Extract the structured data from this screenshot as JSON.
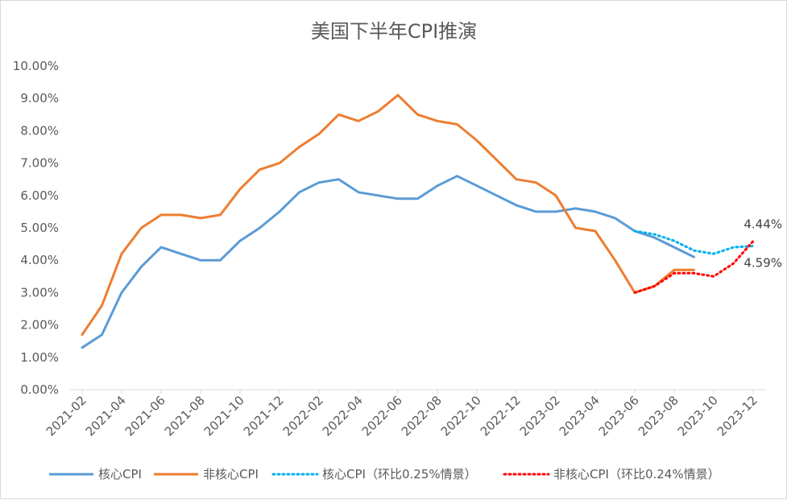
{
  "chart_data": {
    "type": "line",
    "title": "美国下半年CPI推演",
    "xlabel": "",
    "ylabel": "",
    "ylim": [
      0,
      10
    ],
    "y_ticks": [
      "0.00%",
      "1.00%",
      "2.00%",
      "3.00%",
      "4.00%",
      "5.00%",
      "6.00%",
      "7.00%",
      "8.00%",
      "9.00%",
      "10.00%"
    ],
    "x_ticks": [
      "2021-02",
      "2021-04",
      "2021-06",
      "2021-08",
      "2021-10",
      "2021-12",
      "2022-02",
      "2022-04",
      "2022-06",
      "2022-08",
      "2022-10",
      "2022-12",
      "2023-02",
      "2023-04",
      "2023-06",
      "2023-08",
      "2023-10",
      "2023-12"
    ],
    "grid": false,
    "legend_position": "bottom",
    "x": [
      "2021-02",
      "2021-03",
      "2021-04",
      "2021-05",
      "2021-06",
      "2021-07",
      "2021-08",
      "2021-09",
      "2021-10",
      "2021-11",
      "2021-12",
      "2022-01",
      "2022-02",
      "2022-03",
      "2022-04",
      "2022-05",
      "2022-06",
      "2022-07",
      "2022-08",
      "2022-09",
      "2022-10",
      "2022-11",
      "2022-12",
      "2023-01",
      "2023-02",
      "2023-03",
      "2023-04",
      "2023-05",
      "2023-06",
      "2023-07",
      "2023-08",
      "2023-09",
      "2023-10",
      "2023-11",
      "2023-12"
    ],
    "series": [
      {
        "name": "核心CPI",
        "style": "solid",
        "color": "#5b9bd5",
        "values": [
          1.3,
          1.7,
          3.0,
          3.8,
          4.4,
          4.2,
          4.0,
          4.0,
          4.6,
          5.0,
          5.5,
          6.1,
          6.4,
          6.5,
          6.1,
          6.0,
          5.9,
          5.9,
          6.3,
          6.6,
          6.3,
          6.0,
          5.7,
          5.5,
          5.5,
          5.6,
          5.5,
          5.3,
          4.9,
          4.7,
          4.4,
          4.1,
          null,
          null,
          null
        ]
      },
      {
        "name": "非核心CPI",
        "style": "solid",
        "color": "#ed7d31",
        "values": [
          1.7,
          2.6,
          4.2,
          5.0,
          5.4,
          5.4,
          5.3,
          5.4,
          6.2,
          6.8,
          7.0,
          7.5,
          7.9,
          8.5,
          8.3,
          8.6,
          9.1,
          8.5,
          8.3,
          8.2,
          7.7,
          7.1,
          6.5,
          6.4,
          6.0,
          5.0,
          4.9,
          4.0,
          3.0,
          3.2,
          3.7,
          3.7,
          null,
          null,
          null
        ]
      },
      {
        "name": "核心CPI（环比0.25%情景）",
        "style": "dotted",
        "color": "#00b0f0",
        "values": [
          null,
          null,
          null,
          null,
          null,
          null,
          null,
          null,
          null,
          null,
          null,
          null,
          null,
          null,
          null,
          null,
          null,
          null,
          null,
          null,
          null,
          null,
          null,
          null,
          null,
          null,
          null,
          null,
          4.9,
          4.8,
          4.6,
          4.3,
          4.2,
          4.4,
          4.44
        ]
      },
      {
        "name": "非核心CPI（环比0.24%情景）",
        "style": "dotted",
        "color": "#ff0000",
        "values": [
          null,
          null,
          null,
          null,
          null,
          null,
          null,
          null,
          null,
          null,
          null,
          null,
          null,
          null,
          null,
          null,
          null,
          null,
          null,
          null,
          null,
          null,
          null,
          null,
          null,
          null,
          null,
          null,
          3.0,
          3.2,
          3.6,
          3.6,
          3.5,
          3.9,
          4.59
        ]
      }
    ],
    "annotations": [
      {
        "text": "4.44%",
        "x": "2023-12",
        "y": 4.44,
        "series": "核心CPI（环比0.25%情景）"
      },
      {
        "text": "4.59%",
        "x": "2023-12",
        "y": 4.59,
        "series": "非核心CPI（环比0.24%情景）"
      }
    ]
  }
}
